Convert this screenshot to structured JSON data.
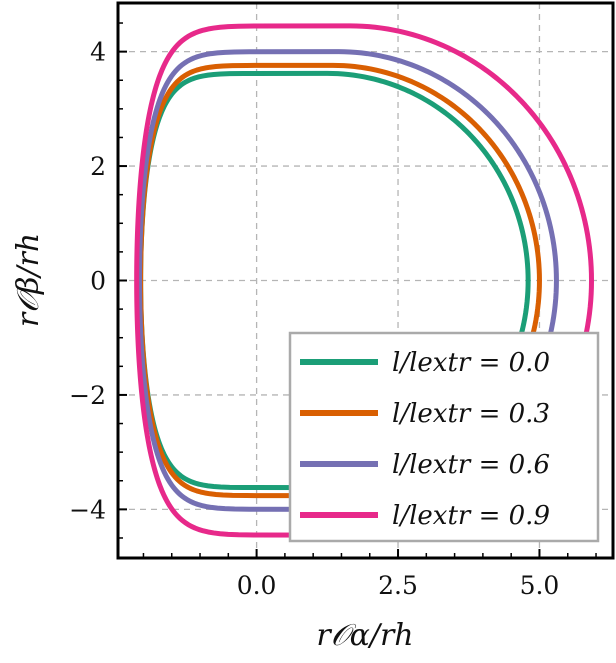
{
  "chart_data": {
    "type": "line",
    "title": "",
    "xlabel": "r𝒪α/rh",
    "ylabel": "r𝒪β/rh",
    "xlim": [
      -2.45,
      6.3
    ],
    "ylim": [
      -4.85,
      4.85
    ],
    "xticks": [
      0.0,
      2.5,
      5.0
    ],
    "xtick_labels": [
      "0.0",
      "2.5",
      "5.0"
    ],
    "yticks": [
      -4,
      -2,
      0,
      2,
      4
    ],
    "ytick_labels": [
      "−4",
      "−2",
      "0",
      "2",
      "4"
    ],
    "grid": true,
    "legend_position": "lower-right",
    "series": [
      {
        "name": "l/lextr = 0.0",
        "color": "#1b9e77",
        "x_left": -2.05,
        "x_right": 4.8,
        "x_top": 1.25,
        "y_top": 3.62,
        "y_bottom": -3.62
      },
      {
        "name": "l/lextr = 0.3",
        "color": "#d95f02",
        "x_left": -2.05,
        "x_right": 5.0,
        "x_top": 1.35,
        "y_top": 3.76,
        "y_bottom": -3.76
      },
      {
        "name": "l/lextr = 0.6",
        "color": "#7570b3",
        "x_left": -2.07,
        "x_right": 5.3,
        "x_top": 1.45,
        "y_top": 4.0,
        "y_bottom": -4.0
      },
      {
        "name": "l/lextr = 0.9",
        "color": "#e7298a",
        "x_left": -2.12,
        "x_right": 5.92,
        "x_top": 1.65,
        "y_top": 4.45,
        "y_bottom": -4.45
      }
    ]
  }
}
